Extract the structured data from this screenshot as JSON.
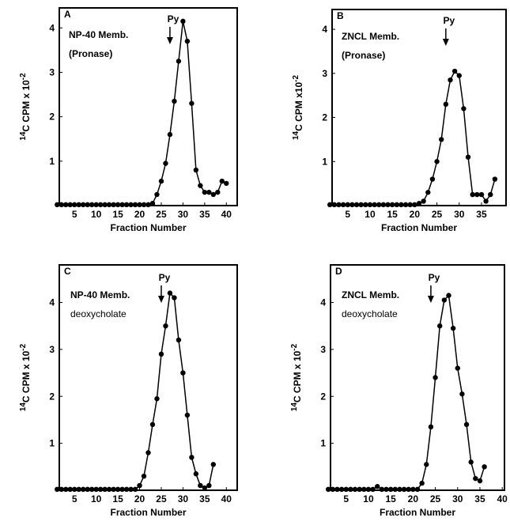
{
  "chart_data": [
    {
      "type": "line",
      "panel": "A",
      "title_lines": [
        "NP-40 Memb.",
        "(Pronase)"
      ],
      "annotation": {
        "text": "Py",
        "x": 27
      },
      "x": [
        1,
        2,
        3,
        4,
        5,
        6,
        7,
        8,
        9,
        10,
        11,
        12,
        13,
        14,
        15,
        16,
        17,
        18,
        19,
        20,
        21,
        22,
        23,
        24,
        25,
        26,
        27,
        28,
        29,
        30,
        31,
        32,
        33,
        34,
        35,
        36,
        37,
        38,
        39,
        40
      ],
      "values": [
        0.02,
        0.02,
        0.02,
        0.02,
        0.02,
        0.02,
        0.02,
        0.02,
        0.02,
        0.02,
        0.02,
        0.02,
        0.02,
        0.02,
        0.02,
        0.02,
        0.02,
        0.02,
        0.02,
        0.02,
        0.02,
        0.02,
        0.05,
        0.25,
        0.55,
        0.95,
        1.6,
        2.35,
        3.25,
        4.15,
        3.7,
        2.3,
        0.8,
        0.45,
        0.3,
        0.3,
        0.25,
        0.3,
        0.55,
        0.5
      ],
      "color": "#000000",
      "xlim": [
        1.5,
        42.5
      ],
      "ylim": [
        0,
        4.45
      ],
      "xticks": [
        5,
        10,
        15,
        20,
        25,
        30,
        35,
        40
      ],
      "yticks": [
        1,
        2,
        3,
        4
      ],
      "xlabel": "Fraction Number",
      "ylabel_pre": "14",
      "ylabel": "C CPM x 10",
      "ylabel_exp": "-2"
    },
    {
      "type": "line",
      "panel": "B",
      "title_lines": [
        "ZNCL Memb.",
        "(Pronase)"
      ],
      "annotation": {
        "text": "Py",
        "x": 27
      },
      "x": [
        1,
        2,
        3,
        4,
        5,
        6,
        7,
        8,
        9,
        10,
        11,
        12,
        13,
        14,
        15,
        16,
        17,
        18,
        19,
        20,
        21,
        22,
        23,
        24,
        25,
        26,
        27,
        28,
        29,
        30,
        31,
        32,
        33,
        34,
        35,
        36,
        37,
        38
      ],
      "values": [
        0.02,
        0.02,
        0.02,
        0.02,
        0.02,
        0.02,
        0.02,
        0.02,
        0.02,
        0.02,
        0.02,
        0.02,
        0.02,
        0.02,
        0.02,
        0.02,
        0.02,
        0.02,
        0.02,
        0.02,
        0.05,
        0.1,
        0.3,
        0.6,
        1.0,
        1.5,
        2.3,
        2.85,
        3.05,
        2.95,
        2.2,
        1.1,
        0.25,
        0.25,
        0.25,
        0.1,
        0.25,
        0.6
      ],
      "color": "#000000",
      "xlim": [
        1.5,
        40.5
      ],
      "ylim": [
        0,
        4.45
      ],
      "xticks": [
        5,
        10,
        15,
        20,
        25,
        30,
        35
      ],
      "yticks": [
        1,
        2,
        3,
        4
      ],
      "xlabel": "Fraction Number",
      "ylabel_pre": "14",
      "ylabel": "C CPM x10",
      "ylabel_exp": "-2"
    },
    {
      "type": "line",
      "panel": "C",
      "title_lines": [
        "NP-40 Memb.",
        "deoxycholate"
      ],
      "annotation": {
        "text": "Py",
        "x": 25
      },
      "x": [
        1,
        2,
        3,
        4,
        5,
        6,
        7,
        8,
        9,
        10,
        11,
        12,
        13,
        14,
        15,
        16,
        17,
        18,
        19,
        20,
        21,
        22,
        23,
        24,
        25,
        26,
        27,
        28,
        29,
        30,
        31,
        32,
        33,
        34,
        35,
        36,
        37
      ],
      "values": [
        0.02,
        0.02,
        0.02,
        0.02,
        0.02,
        0.02,
        0.02,
        0.02,
        0.02,
        0.02,
        0.02,
        0.02,
        0.02,
        0.02,
        0.02,
        0.02,
        0.02,
        0.02,
        0.02,
        0.1,
        0.3,
        0.8,
        1.4,
        1.95,
        2.9,
        3.5,
        4.2,
        4.1,
        3.2,
        2.5,
        1.6,
        0.7,
        0.35,
        0.1,
        0.05,
        0.1,
        0.55
      ],
      "color": "#000000",
      "xlim": [
        1.5,
        42.5
      ],
      "ylim": [
        0,
        4.8
      ],
      "xticks": [
        5,
        10,
        15,
        20,
        25,
        30,
        35,
        40
      ],
      "yticks": [
        1,
        2,
        3,
        4
      ],
      "xlabel": "Fraction Number",
      "ylabel_pre": "14",
      "ylabel": "C CPM x 10",
      "ylabel_exp": "-2"
    },
    {
      "type": "line",
      "panel": "D",
      "title_lines": [
        "ZNCL Memb.",
        "deoxycholate"
      ],
      "annotation": {
        "text": "Py",
        "x": 24
      },
      "x": [
        1,
        2,
        3,
        4,
        5,
        6,
        7,
        8,
        9,
        10,
        11,
        12,
        13,
        14,
        15,
        16,
        17,
        18,
        19,
        20,
        21,
        22,
        23,
        24,
        25,
        26,
        27,
        28,
        29,
        30,
        31,
        32,
        33,
        34,
        35,
        36
      ],
      "values": [
        0.02,
        0.02,
        0.02,
        0.02,
        0.02,
        0.02,
        0.02,
        0.02,
        0.02,
        0.02,
        0.02,
        0.08,
        0.02,
        0.02,
        0.02,
        0.02,
        0.02,
        0.02,
        0.02,
        0.02,
        0.02,
        0.15,
        0.55,
        1.35,
        2.4,
        3.5,
        4.05,
        4.15,
        3.45,
        2.6,
        2.05,
        1.4,
        0.6,
        0.25,
        0.2,
        0.5
      ],
      "color": "#000000",
      "xlim": [
        1.5,
        40.5
      ],
      "ylim": [
        0,
        4.8
      ],
      "xticks": [
        5,
        10,
        15,
        20,
        25,
        30,
        35,
        40
      ],
      "yticks": [
        1,
        2,
        3,
        4
      ],
      "xlabel": "Fraction Number",
      "ylabel_pre": "14",
      "ylabel": "C CPM x 10",
      "ylabel_exp": "-2"
    }
  ]
}
